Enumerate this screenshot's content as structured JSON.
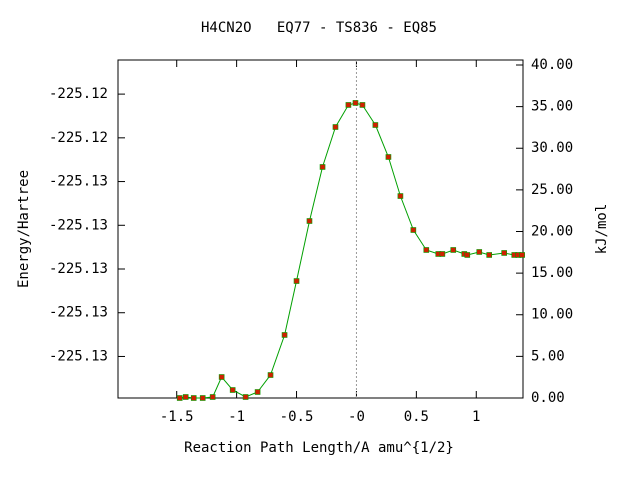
{
  "chart_data": {
    "type": "line",
    "title": "H4CN2O   EQ77 - TS836 - EQ85",
    "xlabel": "Reaction Path Length/A amu^{1/2}",
    "ylabel": "Energy/Hartree",
    "y2label": "kJ/mol",
    "xlim": [
      -1.99,
      1.39
    ],
    "xticks": [
      -1.5,
      -1,
      -0.5,
      {
        "value": 0,
        "label": "-0"
      },
      0.5,
      1
    ],
    "ylim": [
      -225.1359,
      -225.12044
    ],
    "yticks": [
      {
        "value": -225.134,
        "label": "-225.13"
      },
      {
        "value": -225.132,
        "label": "-225.13"
      },
      {
        "value": -225.13,
        "label": "-225.13"
      },
      {
        "value": -225.128,
        "label": "-225.13"
      },
      {
        "value": -225.126,
        "label": "-225.13"
      },
      {
        "value": -225.124,
        "label": "-225.12"
      },
      {
        "value": -225.122,
        "label": "-225.12"
      }
    ],
    "y2lim": [
      0,
      40.6
    ],
    "y2ticks": [
      {
        "value": 0,
        "label": "0.00"
      },
      {
        "value": 5,
        "label": "5.00"
      },
      {
        "value": 10,
        "label": "10.00"
      },
      {
        "value": 15,
        "label": "15.00"
      },
      {
        "value": 20,
        "label": "20.00"
      },
      {
        "value": 25,
        "label": "25.00"
      },
      {
        "value": 30,
        "label": "30.00"
      },
      {
        "value": 35,
        "label": "35.00"
      },
      {
        "value": 40,
        "label": "40.00"
      }
    ],
    "x": [
      -1.475,
      -1.425,
      -1.358,
      -1.283,
      -1.2,
      -1.125,
      -1.033,
      -0.925,
      -0.825,
      -0.717,
      -0.6,
      -0.5,
      -0.392,
      -0.283,
      -0.175,
      -0.067,
      -0.008,
      0.05,
      0.158,
      0.267,
      0.367,
      0.475,
      0.583,
      0.683,
      0.717,
      0.808,
      0.9,
      0.925,
      1.025,
      1.108,
      1.233,
      1.317,
      1.35,
      1.383
    ],
    "series": [
      {
        "color": "#00a000",
        "marker_color": "#d02000",
        "axis": "y2",
        "values": [
          0,
          0.12,
          0,
          0,
          0.12,
          2.52,
          0.96,
          0.12,
          0.72,
          2.76,
          7.57,
          14.05,
          21.26,
          27.75,
          32.55,
          35.2,
          35.44,
          35.2,
          32.79,
          28.95,
          24.26,
          20.18,
          17.78,
          17.3,
          17.3,
          17.78,
          17.3,
          17.18,
          17.54,
          17.18,
          17.42,
          17.18,
          17.18,
          17.18
        ]
      }
    ]
  }
}
